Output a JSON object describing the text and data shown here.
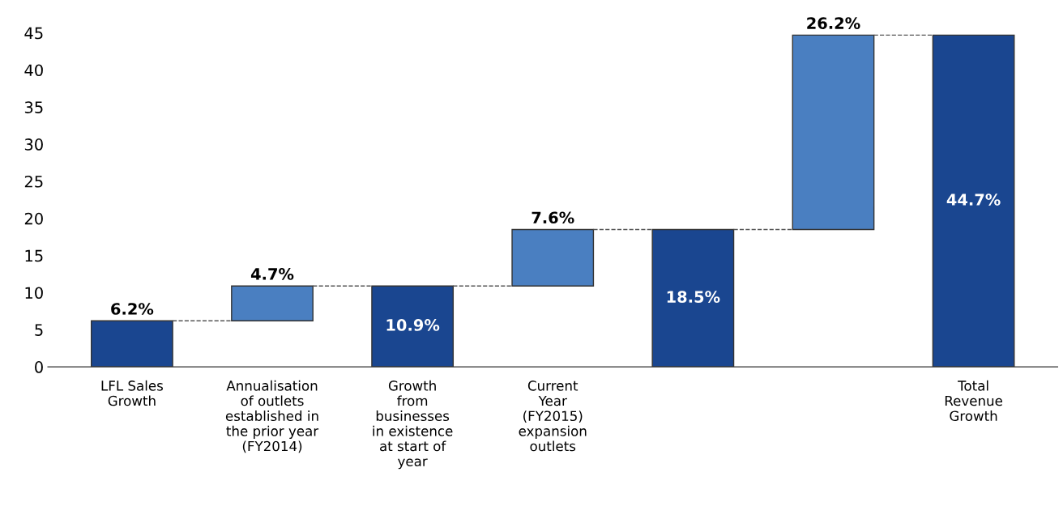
{
  "chart_data": {
    "type": "bar",
    "categories": [
      "LFL Sales\nGrowth",
      "Annualisation\nof outlets\nestablished in\nthe prior year\n(FY2014)",
      "Growth\nfrom\nbusinesses\nin existence\nat start of\nyear",
      "Current\nYear\n(FY2015)\nexpansion\noutlets",
      null,
      null,
      "Total\nRevenue\nGrowth"
    ],
    "values": [
      6.2,
      4.7,
      10.9,
      7.6,
      18.5,
      26.2,
      44.7
    ],
    "base": [
      0,
      6.2,
      0,
      10.9,
      0,
      18.5,
      0
    ],
    "colors": [
      "#1a4690",
      "#4a7fc1",
      "#1a4690",
      "#4a7fc1",
      "#1a4690",
      "#4a7fc1",
      "#1a4690"
    ],
    "value_labels": [
      "6.2%",
      "4.7%",
      "10.9%",
      "7.6%",
      "18.5%",
      "26.2%",
      "44.7%"
    ],
    "ylim": [
      0,
      45
    ],
    "yticks": [
      0,
      5,
      10,
      15,
      20,
      25,
      30,
      35,
      40,
      45
    ],
    "grid": false,
    "legend": false
  }
}
